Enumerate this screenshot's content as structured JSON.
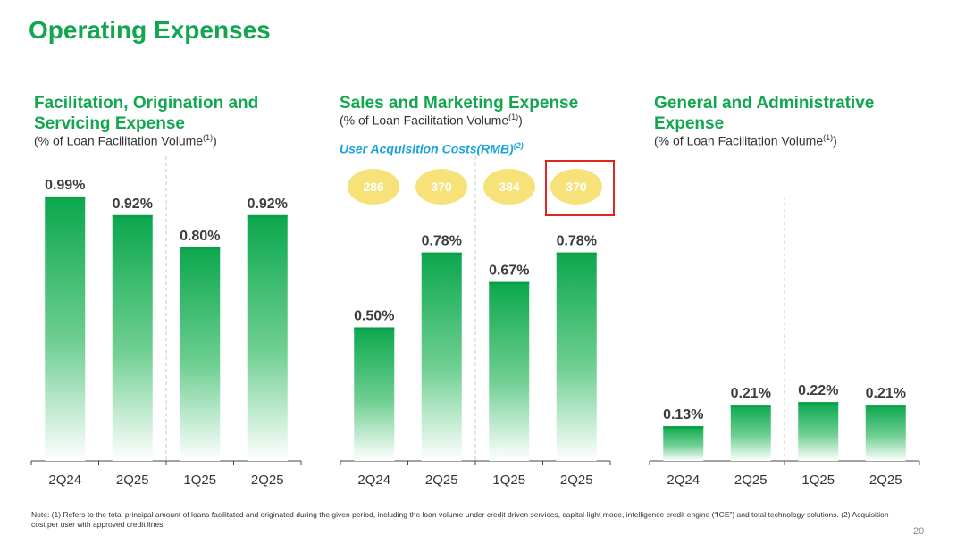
{
  "title": "Operating Expenses",
  "panels": [
    {
      "title_line1": "Facilitation, Origination and",
      "title_line2": "Servicing Expense",
      "subtitle": "(% of Loan Facilitation Volume",
      "subtitle_sup": "(1)",
      "subtitle_end": ")"
    },
    {
      "title_line1": "Sales and Marketing Expense",
      "title_line2": "",
      "subtitle": "(% of Loan Facilitation Volume",
      "subtitle_sup": "(1)",
      "subtitle_end": ")"
    },
    {
      "title_line1": "General and Administrative",
      "title_line2": "Expense",
      "subtitle": "(% of Loan Facilitation Volume",
      "subtitle_sup": "(1)",
      "subtitle_end": ")"
    }
  ],
  "user_acquisition": {
    "label": "User Acquisition Costs(RMB)",
    "label_sup": "(2)",
    "values": [
      "286",
      "370",
      "384",
      "370"
    ]
  },
  "note_text": "Note: (1) Refers to the total principal amount of loans facilitated and originated during the given period, including the loan volume under credit driven services, capital-light mode, intelligence credit engine (“ICE”) and total technology solutions. (2) Acquisition cost per user with approved credit lines.",
  "page_number": "20",
  "colors": {
    "brand_green": "#12a64f",
    "bar_top": "#0ba74d",
    "bubble": "#f7e27a",
    "highlight": "#e0261f",
    "uac_label": "#1aa3e0"
  },
  "chart_data": [
    {
      "type": "bar",
      "title": "Facilitation, Origination and Servicing Expense",
      "categories": [
        "2Q24",
        "2Q25",
        "1Q25",
        "2Q25"
      ],
      "values": [
        0.99,
        0.92,
        0.8,
        0.92
      ],
      "value_labels": [
        "0.99%",
        "0.92%",
        "0.80%",
        "0.92%"
      ],
      "ylim": [
        0,
        1.05
      ],
      "grid": false
    },
    {
      "type": "bar",
      "title": "Sales and Marketing Expense",
      "categories": [
        "2Q24",
        "2Q25",
        "1Q25",
        "2Q25"
      ],
      "values": [
        0.5,
        0.78,
        0.67,
        0.78
      ],
      "value_labels": [
        "0.50%",
        "0.78%",
        "0.67%",
        "0.78%"
      ],
      "ylim": [
        0,
        1.05
      ],
      "grid": false
    },
    {
      "type": "bar",
      "title": "General and Administrative Expense",
      "categories": [
        "2Q24",
        "2Q25",
        "1Q25",
        "2Q25"
      ],
      "values": [
        0.13,
        0.21,
        0.22,
        0.21
      ],
      "value_labels": [
        "0.13%",
        "0.21%",
        "0.22%",
        "0.21%"
      ],
      "ylim": [
        0,
        1.05
      ],
      "grid": false
    }
  ]
}
